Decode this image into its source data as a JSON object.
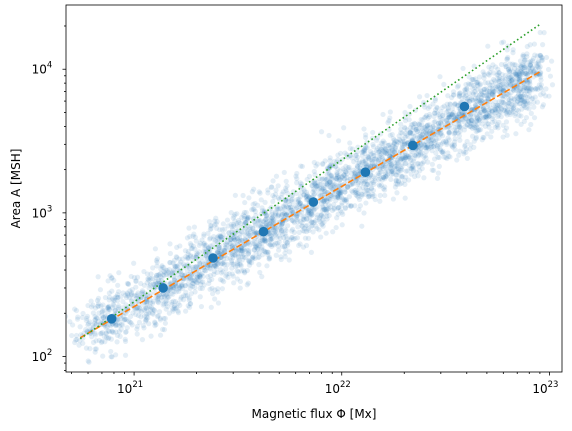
{
  "chart_data": {
    "type": "scatter",
    "xlabel": "Magnetic flux Φ [Mx]",
    "ylabel": "Area A [MSH]",
    "x_scale": "log",
    "y_scale": "log",
    "xlim": [
      4.7e+20,
      1.15e+23
    ],
    "ylim": [
      78,
      28000
    ],
    "x_ticks": [
      {
        "value": 1e+21,
        "base": "10",
        "exp": "21"
      },
      {
        "value": 1e+22,
        "base": "10",
        "exp": "22"
      },
      {
        "value": 1e+23,
        "base": "10",
        "exp": "23"
      }
    ],
    "y_ticks": [
      {
        "value": 100,
        "base": "10",
        "exp": "2"
      },
      {
        "value": 1000,
        "base": "10",
        "exp": "3"
      },
      {
        "value": 10000,
        "base": "10",
        "exp": "4"
      }
    ],
    "grid": false,
    "scatter_cloud": {
      "color": "#1f77b4",
      "opacity": 0.12,
      "count": 3200,
      "x_range": [
        5.5e+20,
        9e+22
      ],
      "trend": {
        "x0": 5.5e+20,
        "y0": 140,
        "x1": 9e+22,
        "y1": 9500
      },
      "scatter_dex": 0.12
    },
    "series": [
      {
        "kind": "binned-means",
        "color": "#1f77b4",
        "points": [
          {
            "x": 7.8e+20,
            "y": 183
          },
          {
            "x": 1.38e+21,
            "y": 300
          },
          {
            "x": 2.4e+21,
            "y": 485
          },
          {
            "x": 4.2e+21,
            "y": 740
          },
          {
            "x": 7.3e+21,
            "y": 1190
          },
          {
            "x": 1.3e+22,
            "y": 1920
          },
          {
            "x": 2.2e+22,
            "y": 2950
          },
          {
            "x": 3.9e+22,
            "y": 5500
          }
        ]
      },
      {
        "kind": "fit-dashed",
        "color": "#ff7f0e",
        "points": [
          {
            "x": 5.5e+20,
            "y": 135
          },
          {
            "x": 9e+22,
            "y": 9600
          }
        ]
      },
      {
        "kind": "fit-dotted",
        "color": "#2ca02c",
        "points": [
          {
            "x": 5.5e+20,
            "y": 133
          },
          {
            "x": 9e+22,
            "y": 20500
          }
        ]
      }
    ]
  }
}
